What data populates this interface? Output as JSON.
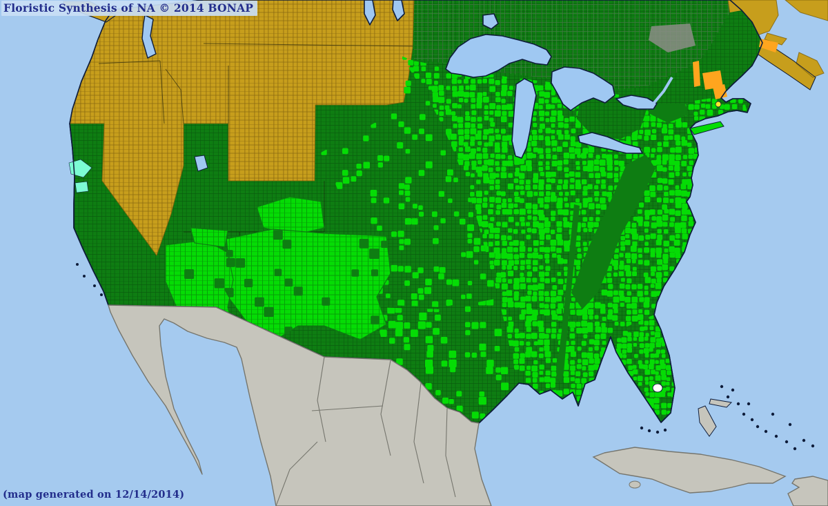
{
  "header": {
    "title": "Floristic Synthesis of NA © 2014 BONAP"
  },
  "footer": {
    "caption": "(map generated on 12/14/2014)"
  },
  "map": {
    "colors": {
      "water": "#A5CAEF",
      "lake_blue": "#9FC8F2",
      "coastline": "#0E1C3A",
      "state_dark_green": "#0E7D12",
      "county_bright_green": "#05DC05",
      "region_olive": "#C79E1C",
      "olive_border": "#7A5F0B",
      "land_gray": "#C6C5BC",
      "land_gray_border": "#75756D",
      "quebec_gray": "#8B8D86",
      "rare_orange": "#FFA51E",
      "highlight_yellow": "#FFE92A",
      "highlight_aqua": "#7CFCD4",
      "okeechobee_white": "#FFFFFF",
      "county_grid_dark": "rgba(4,58,8,0.45)",
      "county_grid_olive": "rgba(100,72,8,0.6)",
      "county_grid_bright": "rgba(8,100,10,0.5)",
      "canada_gray_lines": "rgba(118,122,116,0.5)",
      "border_line": "rgba(25,28,12,0.6)",
      "title_text": "#232E8C",
      "title_bg": "rgba(201,222,245,0.92)"
    }
  }
}
